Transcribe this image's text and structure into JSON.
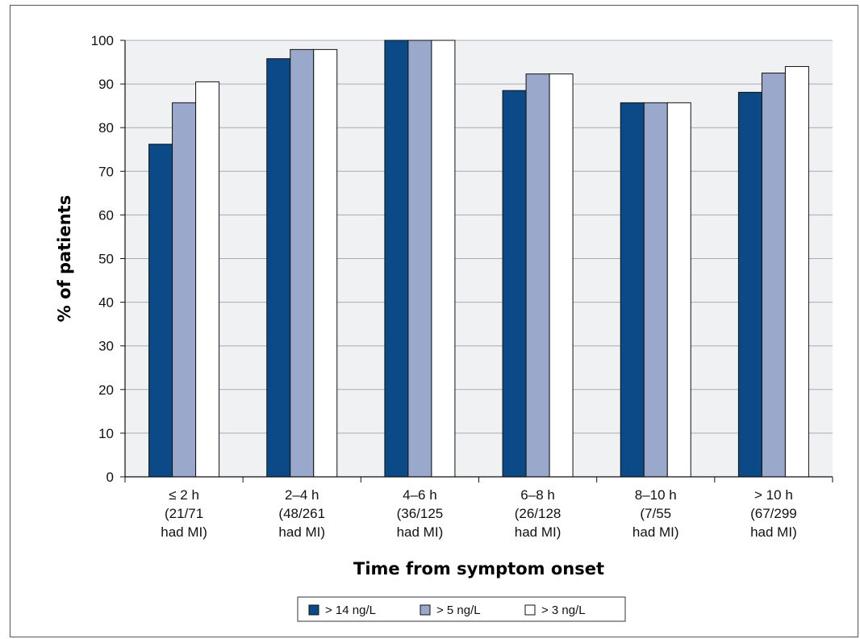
{
  "chart_data": {
    "type": "bar",
    "title": "",
    "xlabel": "Time from symptom onset",
    "ylabel": "% of patients",
    "ylim": [
      0,
      100
    ],
    "yticks": [
      0,
      10,
      20,
      30,
      40,
      50,
      60,
      70,
      80,
      90,
      100
    ],
    "grid": "horizontal",
    "legend_position": "bottom",
    "categories": [
      [
        "≤ 2 h",
        "(21/71",
        "had MI)"
      ],
      [
        "2–4 h",
        "(48/261",
        "had MI)"
      ],
      [
        "4–6 h",
        "(36/125",
        "had MI)"
      ],
      [
        "6–8 h",
        "(26/128",
        "had MI)"
      ],
      [
        "8–10 h",
        "(7/55",
        "had MI)"
      ],
      [
        "> 10 h",
        "(67/299",
        "had MI)"
      ]
    ],
    "series": [
      {
        "name": "> 14 ng/L",
        "color": "#0b4a86",
        "values": [
          76.2,
          95.8,
          100,
          88.5,
          85.7,
          88.1
        ]
      },
      {
        "name": "> 5 ng/L",
        "color": "#9aa8cc",
        "values": [
          85.7,
          97.9,
          100,
          92.3,
          85.7,
          92.5
        ]
      },
      {
        "name": "> 3 ng/L",
        "color": "#ffffff",
        "values": [
          90.5,
          97.9,
          100,
          92.3,
          85.7,
          94.0
        ]
      }
    ],
    "plot_background": "#f0f1f3"
  }
}
